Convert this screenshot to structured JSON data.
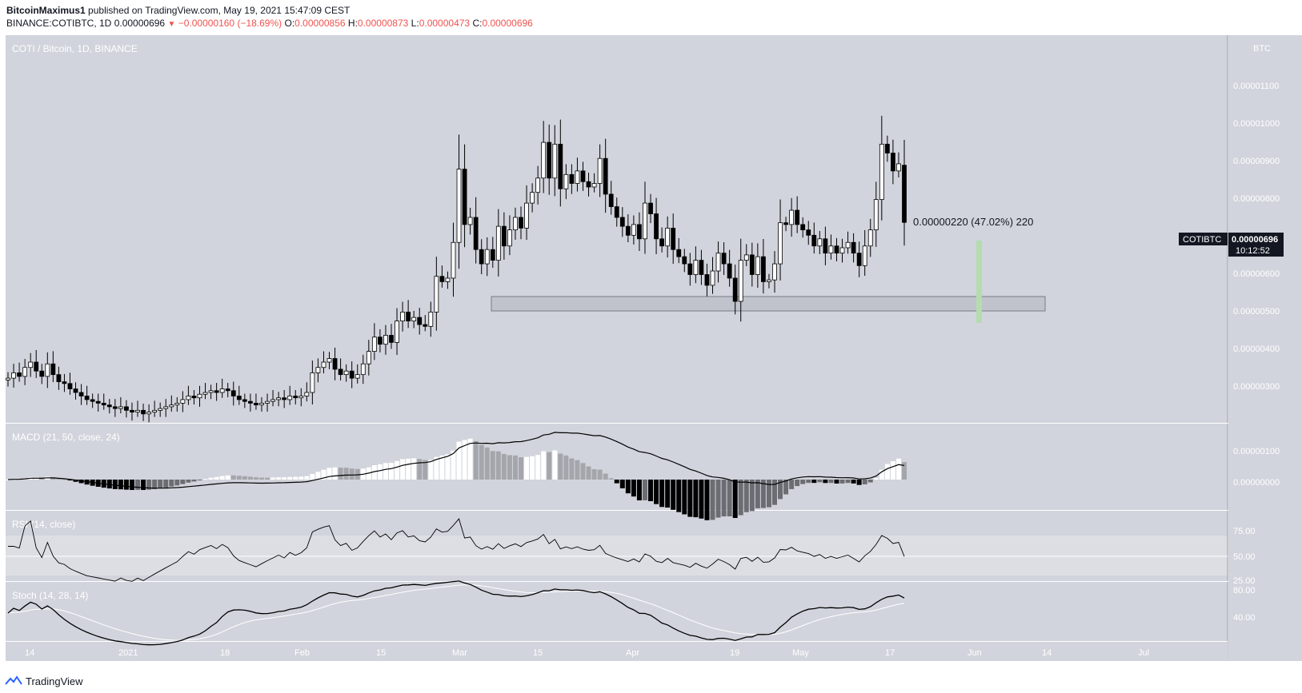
{
  "header": {
    "publisher": "BitcoinMaximus1",
    "published_text": "published on TradingView.com, May 19, 2021 15:47:09 CEST",
    "symbol_line": "BINANCE:COTIBTC, 1D",
    "last": "0.00000696",
    "change": "−0.00000160 (−18.69%)",
    "o_label": "O:",
    "o": "0.00000856",
    "h_label": "H:",
    "h": "0.00000873",
    "l_label": "L:",
    "l": "0.00000473",
    "c_label": "C:",
    "c": "0.00000696"
  },
  "main_pane": {
    "title": "COTI / Bitcoin, 1D, BINANCE",
    "currency": "BTC",
    "y_ticks": [
      "0.00001100",
      "0.00001000",
      "0.00000900",
      "0.00000800",
      "0.00000600",
      "0.00000500",
      "0.00000400",
      "0.00000300"
    ],
    "price_label_symbol": "COTIBTC",
    "price_label_value": "0.00000696",
    "price_label_countdown": "10:12:52",
    "measure_text": "0.00000220 (47.02%) 220"
  },
  "macd_pane": {
    "title": "MACD (21, 50, close, 24)",
    "y_ticks": [
      "0.00000100",
      "0.00000000"
    ]
  },
  "rsi_pane": {
    "title": "RSI (14, close)",
    "y_ticks": [
      "75.00",
      "50.00",
      "25.00"
    ]
  },
  "stoch_pane": {
    "title": "Stoch (14, 28, 14)",
    "y_ticks": [
      "80.00",
      "40.00"
    ]
  },
  "x_axis": {
    "labels": [
      "14",
      "2021",
      "18",
      "Feb",
      "15",
      "Mar",
      "15",
      "Apr",
      "19",
      "May",
      "17",
      "Jun",
      "14",
      "Jul"
    ]
  },
  "footer": {
    "brand": "TradingView"
  },
  "colors": {
    "pane_bg": "#d1d4dc",
    "candle_up": "#ffffff",
    "candle_down": "#000000",
    "zone": "#c0c3cb",
    "measure": "#b5dcb0"
  },
  "chart_data": {
    "type": "candlestick",
    "title": "COTI / Bitcoin, 1D, BINANCE",
    "ylabel": "BTC",
    "ylim": [
      2e-06,
      1.22e-05
    ],
    "x_start": "2020-12-10",
    "x_end": "2021-05-19",
    "support_zone": [
      5.05e-06,
      5.45e-06
    ],
    "candles": [
      {
        "o": 2.55,
        "c": 2.6
      },
      {
        "o": 2.6,
        "c": 2.75
      },
      {
        "o": 2.75,
        "c": 2.65
      },
      {
        "o": 2.65,
        "c": 2.9
      },
      {
        "o": 2.9,
        "c": 3.05
      },
      {
        "o": 3.05,
        "c": 2.8
      },
      {
        "o": 2.8,
        "c": 2.65
      },
      {
        "o": 2.65,
        "c": 3.0
      },
      {
        "o": 3.0,
        "c": 2.7
      },
      {
        "o": 2.7,
        "c": 2.5
      },
      {
        "o": 2.5,
        "c": 2.45
      },
      {
        "o": 2.45,
        "c": 2.3
      },
      {
        "o": 2.3,
        "c": 2.2
      },
      {
        "o": 2.2,
        "c": 2.1
      },
      {
        "o": 2.1,
        "c": 2.0
      },
      {
        "o": 2.0,
        "c": 1.95
      },
      {
        "o": 1.95,
        "c": 1.9
      },
      {
        "o": 1.9,
        "c": 1.85
      },
      {
        "o": 1.85,
        "c": 1.8
      },
      {
        "o": 1.8,
        "c": 1.75
      },
      {
        "o": 1.75,
        "c": 1.8
      },
      {
        "o": 1.8,
        "c": 1.7
      },
      {
        "o": 1.7,
        "c": 1.65
      },
      {
        "o": 1.65,
        "c": 1.7
      },
      {
        "o": 1.7,
        "c": 1.6
      },
      {
        "o": 1.6,
        "c": 1.65
      },
      {
        "o": 1.65,
        "c": 1.7
      },
      {
        "o": 1.7,
        "c": 1.75
      },
      {
        "o": 1.75,
        "c": 1.8
      },
      {
        "o": 1.8,
        "c": 1.85
      },
      {
        "o": 1.85,
        "c": 1.9
      },
      {
        "o": 1.9,
        "c": 2.0
      },
      {
        "o": 2.0,
        "c": 2.1
      },
      {
        "o": 2.1,
        "c": 2.05
      },
      {
        "o": 2.05,
        "c": 2.15
      },
      {
        "o": 2.15,
        "c": 2.2
      },
      {
        "o": 2.2,
        "c": 2.25
      },
      {
        "o": 2.25,
        "c": 2.2
      },
      {
        "o": 2.2,
        "c": 2.3
      },
      {
        "o": 2.3,
        "c": 2.25
      },
      {
        "o": 2.25,
        "c": 2.1
      },
      {
        "o": 2.1,
        "c": 2.0
      },
      {
        "o": 2.0,
        "c": 1.95
      },
      {
        "o": 1.95,
        "c": 1.9
      },
      {
        "o": 1.9,
        "c": 1.85
      },
      {
        "o": 1.85,
        "c": 1.9
      },
      {
        "o": 1.9,
        "c": 1.95
      },
      {
        "o": 1.95,
        "c": 2.0
      },
      {
        "o": 2.0,
        "c": 2.05
      },
      {
        "o": 2.05,
        "c": 2.0
      },
      {
        "o": 2.0,
        "c": 2.1
      },
      {
        "o": 2.1,
        "c": 2.05
      },
      {
        "o": 2.05,
        "c": 2.1
      },
      {
        "o": 2.1,
        "c": 2.2
      },
      {
        "o": 2.2,
        "c": 2.75
      },
      {
        "o": 2.75,
        "c": 2.9
      },
      {
        "o": 2.9,
        "c": 3.05
      },
      {
        "o": 3.05,
        "c": 3.15
      },
      {
        "o": 3.15,
        "c": 2.85
      },
      {
        "o": 2.85,
        "c": 2.7
      },
      {
        "o": 2.7,
        "c": 2.8
      },
      {
        "o": 2.8,
        "c": 2.6
      },
      {
        "o": 2.6,
        "c": 2.7
      },
      {
        "o": 2.7,
        "c": 3.0
      },
      {
        "o": 3.0,
        "c": 3.35
      },
      {
        "o": 3.35,
        "c": 3.75
      },
      {
        "o": 3.75,
        "c": 3.55
      },
      {
        "o": 3.55,
        "c": 3.8
      },
      {
        "o": 3.8,
        "c": 3.6
      },
      {
        "o": 3.6,
        "c": 4.2
      },
      {
        "o": 4.2,
        "c": 4.45
      },
      {
        "o": 4.45,
        "c": 4.2
      },
      {
        "o": 4.2,
        "c": 4.3
      },
      {
        "o": 4.3,
        "c": 4.1
      },
      {
        "o": 4.1,
        "c": 4.05
      },
      {
        "o": 4.05,
        "c": 4.45
      },
      {
        "o": 4.45,
        "c": 5.45
      },
      {
        "o": 5.45,
        "c": 5.3
      },
      {
        "o": 5.3,
        "c": 5.4
      },
      {
        "o": 5.4,
        "c": 6.4
      },
      {
        "o": 6.4,
        "c": 8.45
      },
      {
        "o": 8.45,
        "c": 6.9
      },
      {
        "o": 6.9,
        "c": 7.1
      },
      {
        "o": 7.1,
        "c": 6.2
      },
      {
        "o": 6.2,
        "c": 5.8
      },
      {
        "o": 5.8,
        "c": 6.2
      },
      {
        "o": 6.2,
        "c": 5.9
      },
      {
        "o": 5.9,
        "c": 6.85
      },
      {
        "o": 6.85,
        "c": 6.3
      },
      {
        "o": 6.3,
        "c": 6.75
      },
      {
        "o": 6.75,
        "c": 7.1
      },
      {
        "o": 7.1,
        "c": 6.8
      },
      {
        "o": 6.8,
        "c": 7.5
      },
      {
        "o": 7.5,
        "c": 7.8
      },
      {
        "o": 7.8,
        "c": 8.2
      },
      {
        "o": 8.2,
        "c": 9.2
      },
      {
        "o": 9.2,
        "c": 8.2
      },
      {
        "o": 8.2,
        "c": 9.15
      },
      {
        "o": 9.15,
        "c": 7.9
      },
      {
        "o": 7.9,
        "c": 8.3
      },
      {
        "o": 8.3,
        "c": 8.05
      },
      {
        "o": 8.05,
        "c": 8.4
      },
      {
        "o": 8.4,
        "c": 8.1
      },
      {
        "o": 8.1,
        "c": 7.95
      },
      {
        "o": 7.95,
        "c": 8.05
      },
      {
        "o": 8.05,
        "c": 8.75
      },
      {
        "o": 8.75,
        "c": 7.75
      },
      {
        "o": 7.75,
        "c": 7.4
      },
      {
        "o": 7.4,
        "c": 7.1
      },
      {
        "o": 7.1,
        "c": 6.85
      },
      {
        "o": 6.85,
        "c": 6.6
      },
      {
        "o": 6.6,
        "c": 6.9
      },
      {
        "o": 6.9,
        "c": 6.5
      },
      {
        "o": 6.5,
        "c": 7.5
      },
      {
        "o": 7.5,
        "c": 7.2
      },
      {
        "o": 7.2,
        "c": 6.5
      },
      {
        "o": 6.5,
        "c": 6.3
      },
      {
        "o": 6.3,
        "c": 6.8
      },
      {
        "o": 6.8,
        "c": 6.2
      },
      {
        "o": 6.2,
        "c": 6.0
      },
      {
        "o": 6.0,
        "c": 5.8
      },
      {
        "o": 5.8,
        "c": 5.5
      },
      {
        "o": 5.5,
        "c": 5.9
      },
      {
        "o": 5.9,
        "c": 5.5
      },
      {
        "o": 5.5,
        "c": 5.2
      },
      {
        "o": 5.2,
        "c": 5.6
      },
      {
        "o": 5.6,
        "c": 6.1
      },
      {
        "o": 6.1,
        "c": 5.8
      },
      {
        "o": 5.8,
        "c": 5.4
      },
      {
        "o": 5.4,
        "c": 4.75
      },
      {
        "o": 4.75,
        "c": 5.9
      },
      {
        "o": 5.9,
        "c": 6.05
      },
      {
        "o": 6.05,
        "c": 5.5
      },
      {
        "o": 5.5,
        "c": 6.0
      },
      {
        "o": 6.0,
        "c": 5.3
      },
      {
        "o": 5.3,
        "c": 5.35
      },
      {
        "o": 5.35,
        "c": 5.8
      },
      {
        "o": 5.8,
        "c": 6.95
      },
      {
        "o": 6.95,
        "c": 6.9
      },
      {
        "o": 6.9,
        "c": 7.3
      },
      {
        "o": 7.3,
        "c": 6.9
      },
      {
        "o": 6.9,
        "c": 6.75
      },
      {
        "o": 6.75,
        "c": 6.6
      },
      {
        "o": 6.6,
        "c": 6.3
      },
      {
        "o": 6.3,
        "c": 6.5
      },
      {
        "o": 6.5,
        "c": 6.1
      },
      {
        "o": 6.1,
        "c": 6.3
      },
      {
        "o": 6.3,
        "c": 6.1
      },
      {
        "o": 6.1,
        "c": 6.25
      },
      {
        "o": 6.25,
        "c": 6.4
      },
      {
        "o": 6.4,
        "c": 6.1
      },
      {
        "o": 6.1,
        "c": 5.75
      },
      {
        "o": 5.75,
        "c": 6.3
      },
      {
        "o": 6.3,
        "c": 6.75
      },
      {
        "o": 6.75,
        "c": 7.6
      },
      {
        "o": 7.6,
        "c": 9.15
      },
      {
        "o": 9.15,
        "c": 8.9
      },
      {
        "o": 8.9,
        "c": 8.4
      },
      {
        "o": 8.4,
        "c": 8.6
      },
      {
        "o": 8.56,
        "c": 6.96
      }
    ],
    "macd": {
      "line_range": [
        -2e-07,
        1.6e-06
      ]
    },
    "rsi": {
      "last": 50
    },
    "stoch": {
      "last": 48
    }
  }
}
